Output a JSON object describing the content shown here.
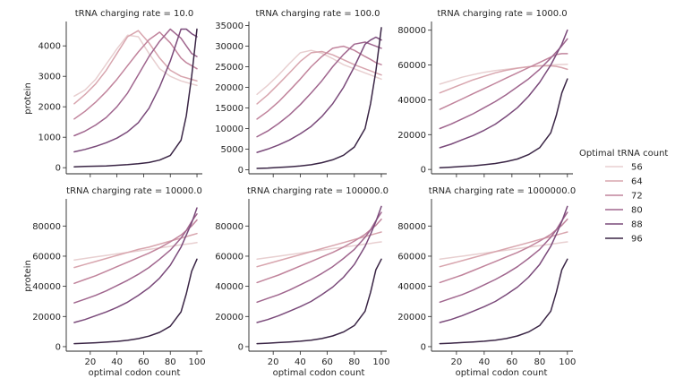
{
  "chart_data": {
    "type": "line",
    "figure": {
      "ylabel": "protein",
      "xlabel": "optimal codon count",
      "legend": {
        "title": "Optimal tRNA count",
        "placement": "right",
        "entries": [
          {
            "label": "56",
            "color": "#e8cfd0"
          },
          {
            "label": "64",
            "color": "#d8a5ae"
          },
          {
            "label": "72",
            "color": "#c1849c"
          },
          {
            "label": "80",
            "color": "#a0668e"
          },
          {
            "label": "88",
            "color": "#7a4a7a"
          },
          {
            "label": "96",
            "color": "#3a2545"
          }
        ]
      },
      "x": [
        8,
        16,
        24,
        32,
        40,
        48,
        56,
        64,
        72,
        80,
        88,
        92,
        96,
        100
      ],
      "grid": false
    },
    "panels": [
      {
        "title": "tRNA charging rate = 10.0",
        "ylim": [
          -200,
          4800
        ],
        "yticks": [
          0,
          1000,
          2000,
          3000,
          4000
        ],
        "ytick_labels": [
          "0",
          "1000",
          "2000",
          "3000",
          "4000"
        ],
        "series": [
          {
            "name": "56",
            "values": [
              2350,
              2550,
              2900,
              3400,
              3900,
              4350,
              4300,
              3750,
              3250,
              3000,
              2850,
              2800,
              2750,
              2700
            ]
          },
          {
            "name": "64",
            "values": [
              2100,
              2400,
              2750,
              3200,
              3750,
              4300,
              4500,
              4100,
              3600,
              3200,
              3000,
              2950,
              2900,
              2850
            ]
          },
          {
            "name": "72",
            "values": [
              1600,
              1850,
              2150,
              2500,
              2900,
              3350,
              3800,
              4200,
              4450,
              4100,
              3600,
              3450,
              3350,
              3250
            ]
          },
          {
            "name": "80",
            "values": [
              1050,
              1200,
              1400,
              1650,
              2000,
              2450,
              3050,
              3650,
              4150,
              4550,
              4250,
              4000,
              3750,
              3650
            ]
          },
          {
            "name": "88",
            "values": [
              520,
              600,
              700,
              820,
              970,
              1180,
              1480,
              1950,
              2650,
              3500,
              4550,
              4550,
              4400,
              4300
            ]
          },
          {
            "name": "96",
            "values": [
              30,
              40,
              50,
              60,
              80,
              100,
              130,
              170,
              250,
              400,
              900,
              1700,
              3000,
              4550
            ]
          }
        ]
      },
      {
        "title": "tRNA charging rate = 100.0",
        "ylim": [
          -1000,
          36000
        ],
        "yticks": [
          0,
          5000,
          10000,
          15000,
          20000,
          25000,
          30000,
          35000
        ],
        "ytick_labels": [
          "0",
          "5000",
          "10000",
          "15000",
          "20000",
          "25000",
          "30000",
          "35000"
        ],
        "series": [
          {
            "name": "56",
            "values": [
              18300,
              20500,
              23000,
              25800,
              28400,
              29000,
              28300,
              27000,
              25500,
              24500,
              23500,
              23000,
              22500,
              22000
            ]
          },
          {
            "name": "64",
            "values": [
              16000,
              18200,
              20800,
              23500,
              26300,
              28400,
              28700,
              27900,
              26700,
              25500,
              24500,
              24000,
              23500,
              23000
            ]
          },
          {
            "name": "72",
            "values": [
              12300,
              14200,
              16500,
              19200,
              22000,
              25000,
              27500,
              29500,
              30000,
              29000,
              27500,
              26800,
              26000,
              25500
            ]
          },
          {
            "name": "80",
            "values": [
              8000,
              9400,
              11200,
              13300,
              15800,
              18600,
              21600,
              25000,
              28000,
              30500,
              31000,
              30500,
              30000,
              29500
            ]
          },
          {
            "name": "88",
            "values": [
              4200,
              5000,
              6000,
              7200,
              8700,
              10500,
              12900,
              16000,
              20000,
              25000,
              30500,
              31500,
              32200,
              31500
            ]
          },
          {
            "name": "96",
            "values": [
              300,
              400,
              550,
              700,
              900,
              1200,
              1700,
              2400,
              3500,
              5500,
              10000,
              16000,
              24000,
              34500
            ]
          }
        ]
      },
      {
        "title": "tRNA charging rate = 1000.0",
        "ylim": [
          -2500,
          85000
        ],
        "yticks": [
          0,
          20000,
          40000,
          60000,
          80000
        ],
        "ytick_labels": [
          "0",
          "20000",
          "40000",
          "60000",
          "80000"
        ],
        "series": [
          {
            "name": "56",
            "values": [
              49000,
              51000,
              53000,
              54500,
              55800,
              56800,
              57500,
              58300,
              59000,
              59500,
              60000,
              60200,
              60300,
              60400
            ]
          },
          {
            "name": "64",
            "values": [
              44000,
              46500,
              49000,
              51500,
              53500,
              55500,
              57000,
              58200,
              59000,
              59500,
              59500,
              59200,
              58500,
              57500
            ]
          },
          {
            "name": "72",
            "values": [
              34500,
              37500,
              40500,
              43500,
              46500,
              49500,
              52500,
              55500,
              58500,
              61500,
              64500,
              66000,
              66500,
              66500
            ]
          },
          {
            "name": "80",
            "values": [
              23500,
              26000,
              29000,
              32000,
              35500,
              39000,
              43000,
              47500,
              52000,
              57500,
              64000,
              67500,
              71000,
              75000
            ]
          },
          {
            "name": "88",
            "values": [
              12500,
              14500,
              17000,
              19500,
              22500,
              26000,
              30500,
              35500,
              42000,
              50000,
              60000,
              66000,
              72000,
              80000
            ]
          },
          {
            "name": "96",
            "values": [
              1000,
              1300,
              1700,
              2100,
              2700,
              3400,
              4500,
              6000,
              8500,
              12500,
              21000,
              31000,
              44000,
              52000
            ]
          }
        ]
      },
      {
        "title": "tRNA charging rate = 10000.0",
        "ylim": [
          -3000,
          98000
        ],
        "yticks": [
          0,
          20000,
          40000,
          60000,
          80000
        ],
        "ytick_labels": [
          "0",
          "20000",
          "40000",
          "60000",
          "80000"
        ],
        "series": [
          {
            "name": "56",
            "values": [
              57500,
              58500,
              59500,
              60500,
              61500,
              62500,
              63500,
              64500,
              65500,
              66500,
              67500,
              68000,
              68500,
              69000
            ]
          },
          {
            "name": "64",
            "values": [
              52500,
              54500,
              56500,
              58500,
              60500,
              62500,
              64500,
              66000,
              68000,
              70000,
              72000,
              73000,
              74000,
              75000
            ]
          },
          {
            "name": "72",
            "values": [
              42000,
              44500,
              47000,
              50000,
              53000,
              56000,
              59000,
              62000,
              65500,
              69500,
              74000,
              77000,
              80000,
              84000
            ]
          },
          {
            "name": "80",
            "values": [
              29000,
              31500,
              34000,
              37000,
              40500,
              44000,
              48000,
              52500,
              58000,
              64000,
              72000,
              77000,
              83000,
              88000
            ]
          },
          {
            "name": "88",
            "values": [
              16000,
              18000,
              20500,
              23000,
              26000,
              29500,
              34000,
              39000,
              45500,
              54000,
              66000,
              74000,
              82000,
              92000
            ]
          },
          {
            "name": "96",
            "values": [
              2000,
              2300,
              2600,
              3000,
              3500,
              4200,
              5300,
              7000,
              9500,
              13500,
              23000,
              35000,
              50000,
              58000
            ]
          }
        ]
      },
      {
        "title": "tRNA charging rate = 100000.0",
        "ylim": [
          -3000,
          98000
        ],
        "yticks": [
          0,
          20000,
          40000,
          60000,
          80000
        ],
        "ytick_labels": [
          "0",
          "20000",
          "40000",
          "60000",
          "80000"
        ],
        "series": [
          {
            "name": "56",
            "values": [
              58000,
              59000,
              60000,
              61000,
              62000,
              63000,
              64000,
              65000,
              66000,
              67000,
              68000,
              68500,
              69000,
              69500
            ]
          },
          {
            "name": "64",
            "values": [
              53000,
              55000,
              57000,
              59000,
              61000,
              63000,
              65000,
              67000,
              69000,
              71000,
              73000,
              74000,
              75000,
              76000
            ]
          },
          {
            "name": "72",
            "values": [
              42500,
              45000,
              47500,
              50500,
              53500,
              56500,
              59500,
              62500,
              66000,
              70000,
              74500,
              77500,
              80500,
              84500
            ]
          },
          {
            "name": "80",
            "values": [
              29500,
              32000,
              34500,
              37500,
              41000,
              44500,
              48500,
              53000,
              58500,
              64500,
              72500,
              77500,
              83500,
              89000
            ]
          },
          {
            "name": "88",
            "values": [
              16000,
              18000,
              20500,
              23500,
              26500,
              30000,
              34500,
              39500,
              46000,
              54500,
              66500,
              74500,
              83000,
              93000
            ]
          },
          {
            "name": "96",
            "values": [
              2000,
              2300,
              2700,
              3100,
              3600,
              4300,
              5400,
              7100,
              9700,
              14000,
              23500,
              36000,
              51000,
              58000
            ]
          }
        ]
      },
      {
        "title": "tRNA charging rate = 1000000.0",
        "ylim": [
          -3000,
          98000
        ],
        "yticks": [
          0,
          20000,
          40000,
          60000,
          80000
        ],
        "ytick_labels": [
          "0",
          "20000",
          "40000",
          "60000",
          "80000"
        ],
        "series": [
          {
            "name": "56",
            "values": [
              58000,
              59000,
              60000,
              61000,
              62000,
              63000,
              64000,
              65000,
              66000,
              67000,
              68000,
              68500,
              69000,
              69500
            ]
          },
          {
            "name": "64",
            "values": [
              53000,
              55000,
              57000,
              59000,
              61000,
              63000,
              65000,
              67000,
              69000,
              71000,
              73000,
              74000,
              75000,
              76000
            ]
          },
          {
            "name": "72",
            "values": [
              42500,
              45000,
              47500,
              50500,
              53500,
              56500,
              59500,
              62500,
              66000,
              70000,
              74500,
              77500,
              80500,
              84500
            ]
          },
          {
            "name": "80",
            "values": [
              29500,
              32000,
              34500,
              37500,
              41000,
              44500,
              48500,
              53000,
              58500,
              64500,
              72500,
              77500,
              83500,
              89000
            ]
          },
          {
            "name": "88",
            "values": [
              16000,
              18000,
              20500,
              23500,
              26500,
              30000,
              34500,
              39500,
              46000,
              54500,
              66500,
              74500,
              83000,
              93000
            ]
          },
          {
            "name": "96",
            "values": [
              2000,
              2300,
              2700,
              3100,
              3600,
              4300,
              5400,
              7100,
              9700,
              14000,
              23500,
              36000,
              51000,
              58000
            ]
          }
        ]
      }
    ],
    "xlim": [
      2,
      104
    ],
    "xticks": [
      20,
      40,
      60,
      80,
      100
    ],
    "xtick_labels": [
      "20",
      "40",
      "60",
      "80",
      "100"
    ]
  }
}
